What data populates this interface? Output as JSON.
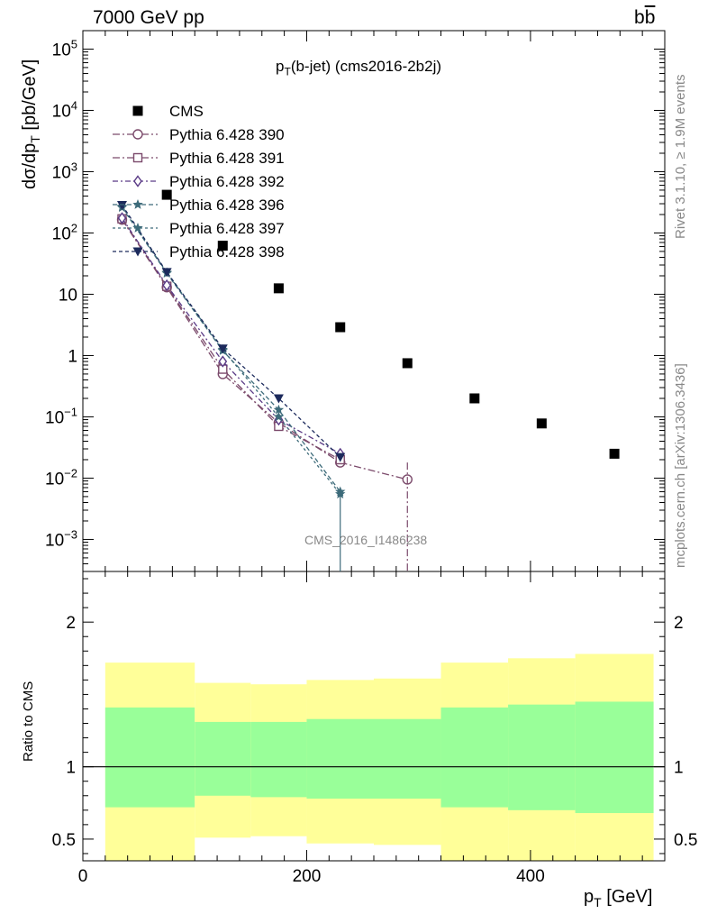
{
  "header": {
    "energy_label": "7000 GeV pp",
    "process_label": "b",
    "process_label_bar": "b"
  },
  "side_labels": {
    "rivet": "Rivet 3.1.10, ≥ 1.9M events",
    "mcplots": "mcplots.cern.ch [arXiv:1306.3436]"
  },
  "watermark": "CMS_2016_I1486238",
  "chart_data": [
    {
      "type": "scatter",
      "panel": "main",
      "title": "p_T(b-jet) (cms2016-2b2j)",
      "title_main": "p",
      "title_sub": "T",
      "title_rest": "(b-jet) (cms2016-2b2j)",
      "ylabel": "dσ/dp_T [pb/GeV]",
      "ylabel_main": "dσ/dp",
      "ylabel_sub": "T",
      "ylabel_rest": " [pb/GeV]",
      "yscale": "log",
      "ylim": [
        0.0003,
        200000
      ],
      "xlim": [
        0,
        520
      ],
      "yticks": [
        {
          "v": 0.001,
          "base": "10",
          "exp": "−3"
        },
        {
          "v": 0.01,
          "base": "10",
          "exp": "−2"
        },
        {
          "v": 0.1,
          "base": "10",
          "exp": "−1"
        },
        {
          "v": 1,
          "base": "1",
          "exp": ""
        },
        {
          "v": 10,
          "base": "10",
          "exp": ""
        },
        {
          "v": 100,
          "base": "10",
          "exp": "2"
        },
        {
          "v": 1000,
          "base": "10",
          "exp": "3"
        },
        {
          "v": 10000,
          "base": "10",
          "exp": "4"
        },
        {
          "v": 100000,
          "base": "10",
          "exp": "5"
        }
      ],
      "legend_position": "top-left",
      "series": [
        {
          "name": "CMS",
          "marker": "square-filled",
          "color": "#000000",
          "x": [
            75,
            125,
            175,
            230,
            290,
            350,
            410,
            475
          ],
          "y": [
            420,
            62,
            12.5,
            2.9,
            0.75,
            0.2,
            0.078,
            0.025
          ]
        },
        {
          "name": "Pythia 6.428 390",
          "marker": "circle-open",
          "color": "#7b4a6b",
          "dash": "8,3,2,3",
          "x": [
            35,
            75,
            125,
            175,
            230,
            290
          ],
          "y": [
            165,
            13,
            0.5,
            0.08,
            0.018,
            0.0095
          ]
        },
        {
          "name": "Pythia 6.428 391",
          "marker": "square-open",
          "color": "#7b4a6b",
          "dash": "8,3,2,3",
          "x": [
            35,
            75,
            125,
            175,
            230
          ],
          "y": [
            170,
            13.5,
            0.6,
            0.07,
            0.02
          ]
        },
        {
          "name": "Pythia 6.428 392",
          "marker": "diamond-open",
          "color": "#5a3a86",
          "dash": "6,3,2,3",
          "x": [
            35,
            75,
            125,
            175,
            230
          ],
          "y": [
            175,
            14,
            0.8,
            0.09,
            0.025
          ]
        },
        {
          "name": "Pythia 6.428 396",
          "marker": "star",
          "color": "#3d6b7a",
          "dash": "5,3",
          "x": [
            35,
            75,
            125,
            175,
            230
          ],
          "y": [
            260,
            22,
            1.2,
            0.13,
            0.006
          ]
        },
        {
          "name": "Pythia 6.428 397",
          "marker": "star",
          "color": "#3d6b7a",
          "dash": "3,3",
          "x": [
            35,
            75,
            125,
            175,
            230
          ],
          "y": [
            270,
            22.5,
            1.25,
            0.1,
            0.0055
          ]
        },
        {
          "name": "Pythia 6.428 398",
          "marker": "triangle-down-filled",
          "color": "#1c2a5c",
          "dash": "4,3",
          "x": [
            35,
            75,
            125,
            175,
            230
          ],
          "y": [
            285,
            23,
            1.3,
            0.2,
            0.022
          ]
        }
      ]
    },
    {
      "type": "area",
      "panel": "ratio",
      "ylabel": "Ratio to CMS",
      "xlabel": "p_T [GeV]",
      "xlabel_main": "p",
      "xlabel_sub": "T",
      "xlabel_rest": " [GeV]",
      "ylim": [
        0.35,
        2.35
      ],
      "xlim": [
        0,
        520
      ],
      "xticks": [
        0,
        200,
        400
      ],
      "yticks": [
        0.5,
        1,
        2
      ],
      "reference_line": 1,
      "bins": [
        {
          "x0": 20,
          "x1": 100,
          "outer": [
            0.32,
            1.72
          ],
          "inner": [
            0.72,
            1.41
          ]
        },
        {
          "x0": 100,
          "x1": 150,
          "outer": [
            0.51,
            1.58
          ],
          "inner": [
            0.8,
            1.31
          ]
        },
        {
          "x0": 150,
          "x1": 200,
          "outer": [
            0.52,
            1.57
          ],
          "inner": [
            0.79,
            1.31
          ]
        },
        {
          "x0": 200,
          "x1": 260,
          "outer": [
            0.47,
            1.6
          ],
          "inner": [
            0.78,
            1.33
          ]
        },
        {
          "x0": 260,
          "x1": 320,
          "outer": [
            0.46,
            1.61
          ],
          "inner": [
            0.78,
            1.33
          ]
        },
        {
          "x0": 320,
          "x1": 380,
          "outer": [
            0.32,
            1.72
          ],
          "inner": [
            0.72,
            1.41
          ]
        },
        {
          "x0": 380,
          "x1": 440,
          "outer": [
            0.32,
            1.75
          ],
          "inner": [
            0.7,
            1.43
          ]
        },
        {
          "x0": 440,
          "x1": 510,
          "outer": [
            0.32,
            1.78
          ],
          "inner": [
            0.68,
            1.45
          ]
        }
      ],
      "colors": {
        "outer_band": "#ffff99",
        "inner_band": "#99ff99"
      }
    }
  ]
}
